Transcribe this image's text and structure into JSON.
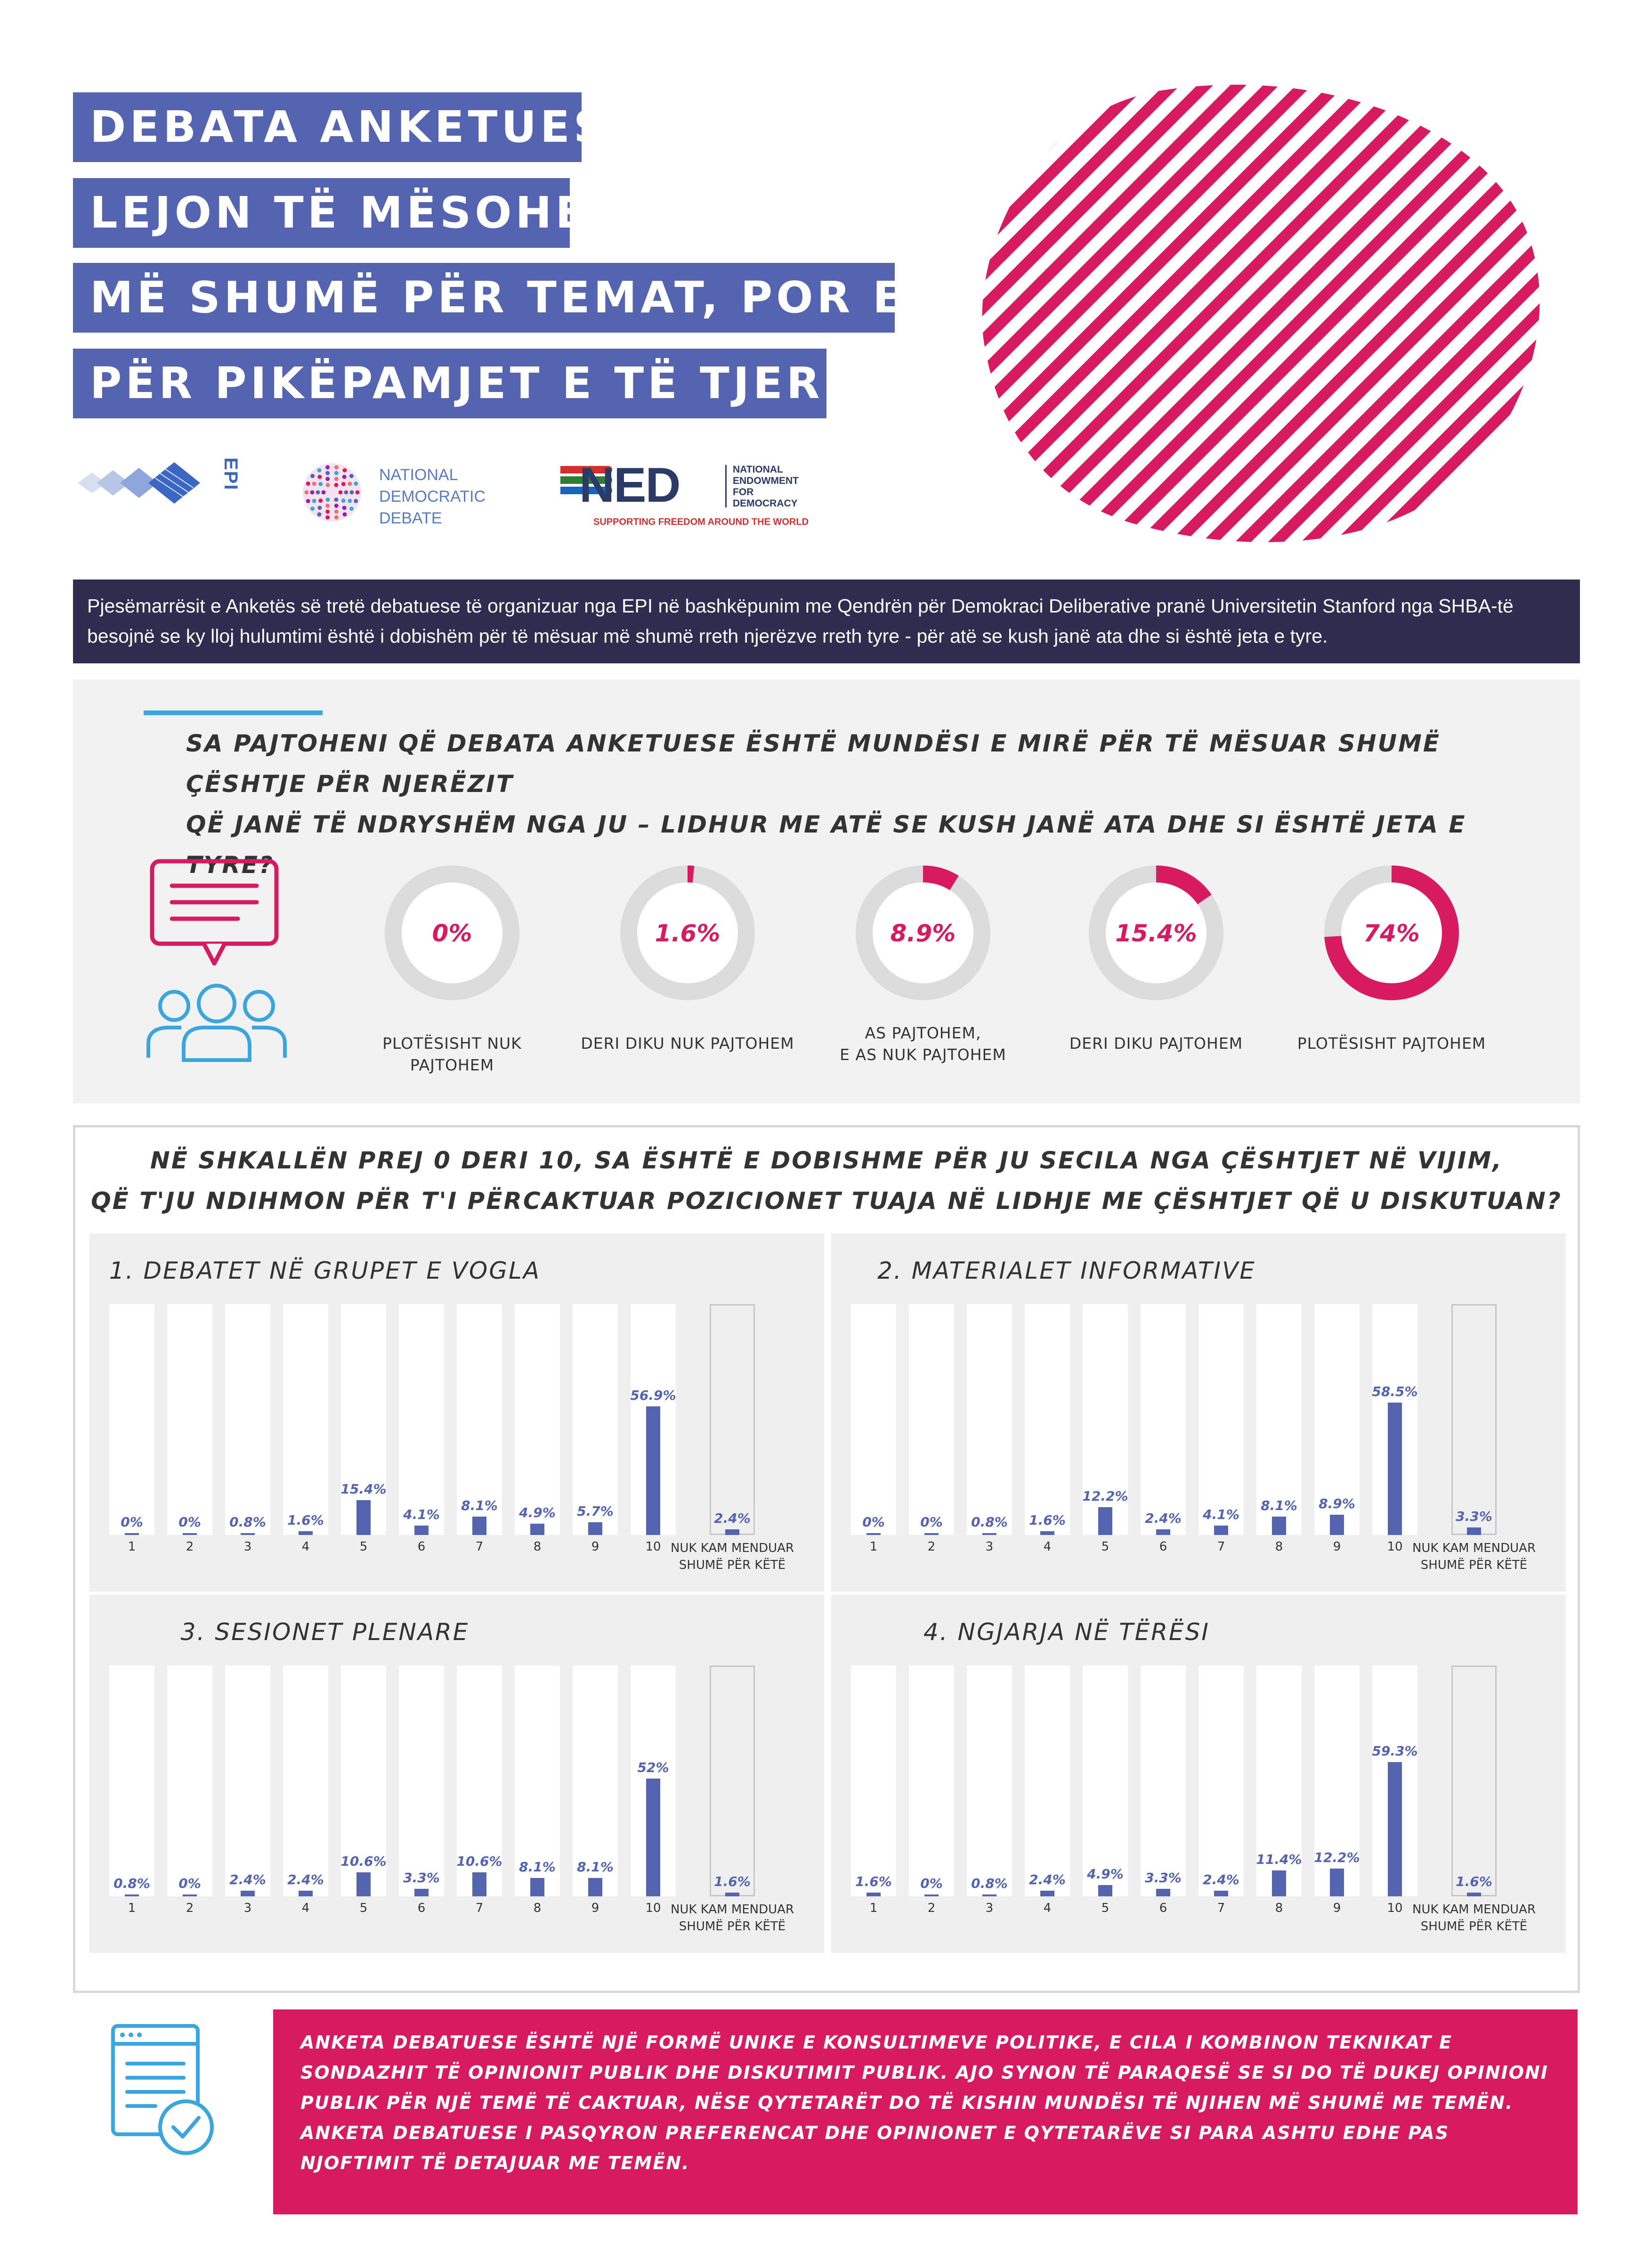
{
  "title": {
    "lines": [
      "DEBATA ANKETUESE",
      "LEJON TË MËSOHET",
      "MË SHUMË PËR TEMAT, POR EDHE",
      "PËR PIKËPAMJET E TË TJERËVE"
    ]
  },
  "logos": {
    "epi": "EPI",
    "nd_line1": "NATIONAL",
    "nd_line2": "DEMOCRATIC",
    "nd_line3": "DEBATE",
    "ned": "NED",
    "ned_full1": "NATIONAL",
    "ned_full2": "ENDOWMENT",
    "ned_full3": "FOR",
    "ned_full4": "DEMOCRACY",
    "ned_tagline": "SUPPORTING FREEDOM AROUND THE WORLD"
  },
  "intro": "Pjesëmarrësit e Anketës së tretë debatuese të organizuar nga EPI në bashkëpunim me Qendrën për Demokraci Deliberative pranë Universitetin Stanford nga SHBA-të besojnë se ky lloj hulumtimi është i dobishëm për të mësuar më shumë rreth njerëzve rreth tyre - për atë se kush janë ata dhe si është jeta e tyre.",
  "question1": {
    "line1": "SA PAJTOHENI QË DEBATA ANKETUESE ËSHTË MUNDËSI E MIRË PËR TË MËSUAR SHUMË ÇËSHTJE PËR NJERËZIT",
    "line2": "QË JANË TË NDRYSHËM NGA JU – LIDHUR ME ATË SE KUSH JANË ATA DHE SI ËSHTË JETA E TYRE?"
  },
  "question2": {
    "line1": "NË SHKALLËN PREJ 0 DERI 10, SA ËSHTË E DOBISHME PËR JU SECILA NGA ÇËSHTJET NË VIJIM,",
    "line2": "QË T'JU NDIHMON PËR T'I PËRCAKTUAR POZICIONET TUAJA NË LIDHJE ME ÇËSHTJET QË U DISKUTUAN?"
  },
  "colors": {
    "accent_pink": "#d81b60",
    "accent_blue": "#5464b0",
    "dark_navy": "#2f2c50",
    "line_blue": "#3aa6dd"
  },
  "icons": [
    "chat-bubble-icon",
    "people-group-icon",
    "checklist-document-icon"
  ],
  "footer": "ANKETA DEBATUESE ËSHTË NJË FORMË UNIKE E KONSULTIMEVE POLITIKE, E CILA I KOMBINON TEKNIKAT E SONDAZHIT TË OPINIONIT PUBLIK DHE DISKUTIMIT PUBLIK. AJO SYNON TË PARAQESË SE SI DO TË DUKEJ OPINIONI PUBLIK PËR NJË TEMË TË CAKTUAR, NËSE QYTETARËT DO TË KISHIN MUNDËSI TË NJIHEN MË SHUMË ME TEMËN. ANKETA DEBATUESE I PASQYRON PREFERENCAT DHE OPINIONET E QYTETARËVE SI PARA ASHTU EDHE PAS NJOFTIMIT TË DETAJUAR ME TEMËN.",
  "chart_data": [
    {
      "type": "pie",
      "variant": "donut-gauges",
      "categories": [
        "PLOTËSISHT NUK PAJTOHEM",
        "DERI DIKU NUK PAJTOHEM",
        "AS PAJTOHEM,|E AS NUK PAJTOHEM",
        "DERI DIKU PAJTOHEM",
        "PLOTËSISHT PAJTOHEM"
      ],
      "values": [
        0,
        1.6,
        8.9,
        15.4,
        74
      ],
      "labels": [
        "0%",
        "1.6%",
        "8.9%",
        "15.4%",
        "74%"
      ]
    },
    {
      "type": "bar",
      "title": "1. DEBATET NË GRUPET E VOGLA",
      "categories": [
        "1",
        "2",
        "3",
        "4",
        "5",
        "6",
        "7",
        "8",
        "9",
        "10",
        "NUK KAM MENDUAR|SHUMË PËR KËTË"
      ],
      "values": [
        0,
        0,
        0.8,
        1.6,
        15.4,
        4.1,
        8.1,
        4.9,
        5.7,
        56.9,
        2.4
      ],
      "labels": [
        "0%",
        "0%",
        "0.8%",
        "1.6%",
        "15.4%",
        "4.1%",
        "8.1%",
        "4.9%",
        "5.7%",
        "56.9%",
        "2.4%"
      ],
      "ylim": [
        0,
        100
      ]
    },
    {
      "type": "bar",
      "title": "2. MATERIALET INFORMATIVE",
      "categories": [
        "1",
        "2",
        "3",
        "4",
        "5",
        "6",
        "7",
        "8",
        "9",
        "10",
        "NUK KAM MENDUAR|SHUMË PËR KËTË"
      ],
      "values": [
        0,
        0,
        0.8,
        1.6,
        12.2,
        2.4,
        4.1,
        8.1,
        8.9,
        58.5,
        3.3
      ],
      "labels": [
        "0%",
        "0%",
        "0.8%",
        "1.6%",
        "12.2%",
        "2.4%",
        "4.1%",
        "8.1%",
        "8.9%",
        "58.5%",
        "3.3%"
      ],
      "ylim": [
        0,
        100
      ]
    },
    {
      "type": "bar",
      "title": "3. SESIONET PLENARE",
      "categories": [
        "1",
        "2",
        "3",
        "4",
        "5",
        "6",
        "7",
        "8",
        "9",
        "10",
        "NUK KAM MENDUAR|SHUMË PËR KËTË"
      ],
      "values": [
        0.8,
        0,
        2.4,
        2.4,
        10.6,
        3.3,
        10.6,
        8.1,
        8.1,
        52,
        1.6
      ],
      "labels": [
        "0.8%",
        "0%",
        "2.4%",
        "2.4%",
        "10.6%",
        "3.3%",
        "10.6%",
        "8.1%",
        "8.1%",
        "52%",
        "1.6%"
      ],
      "ylim": [
        0,
        100
      ]
    },
    {
      "type": "bar",
      "title": "4. NGJARJA NË TËRËSI",
      "categories": [
        "1",
        "2",
        "3",
        "4",
        "5",
        "6",
        "7",
        "8",
        "9",
        "10",
        "NUK KAM MENDUAR|SHUMË PËR KËTË"
      ],
      "values": [
        1.6,
        0,
        0.8,
        2.4,
        4.9,
        3.3,
        2.4,
        11.4,
        12.2,
        59.3,
        1.6
      ],
      "labels": [
        "1.6%",
        "0%",
        "0.8%",
        "2.4%",
        "4.9%",
        "3.3%",
        "2.4%",
        "11.4%",
        "12.2%",
        "59.3%",
        "1.6%"
      ],
      "ylim": [
        0,
        100
      ]
    }
  ]
}
